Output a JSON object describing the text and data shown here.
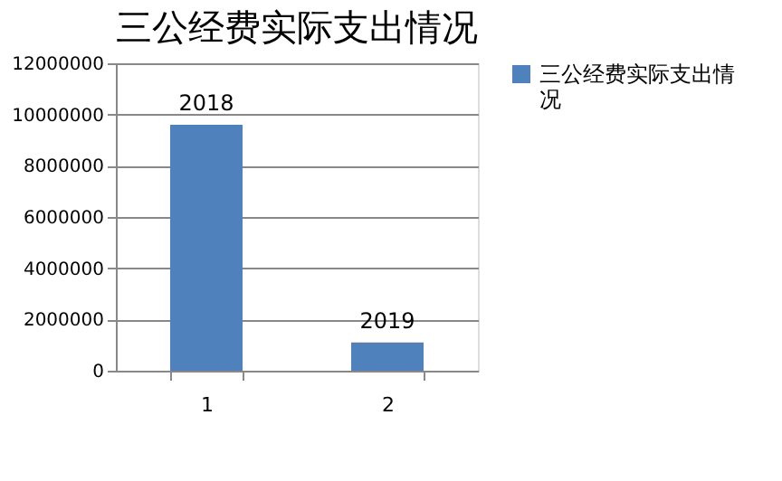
{
  "chart_data": {
    "type": "bar",
    "title": "三公经费实际支出情况",
    "categories": [
      "1",
      "2"
    ],
    "series": [
      {
        "name": "三公经费实际支出情况",
        "color": "#4f81bd",
        "values": [
          9600000,
          1100000
        ]
      }
    ],
    "annotations": [
      {
        "text": "2018",
        "x": "1",
        "y": 9600000
      },
      {
        "text": "2019",
        "x": "2",
        "y": 1100000
      }
    ],
    "ylim": [
      0,
      12000000
    ],
    "yticks": [
      0,
      2000000,
      4000000,
      6000000,
      8000000,
      10000000,
      12000000
    ],
    "grid": "y",
    "legend": "right"
  }
}
